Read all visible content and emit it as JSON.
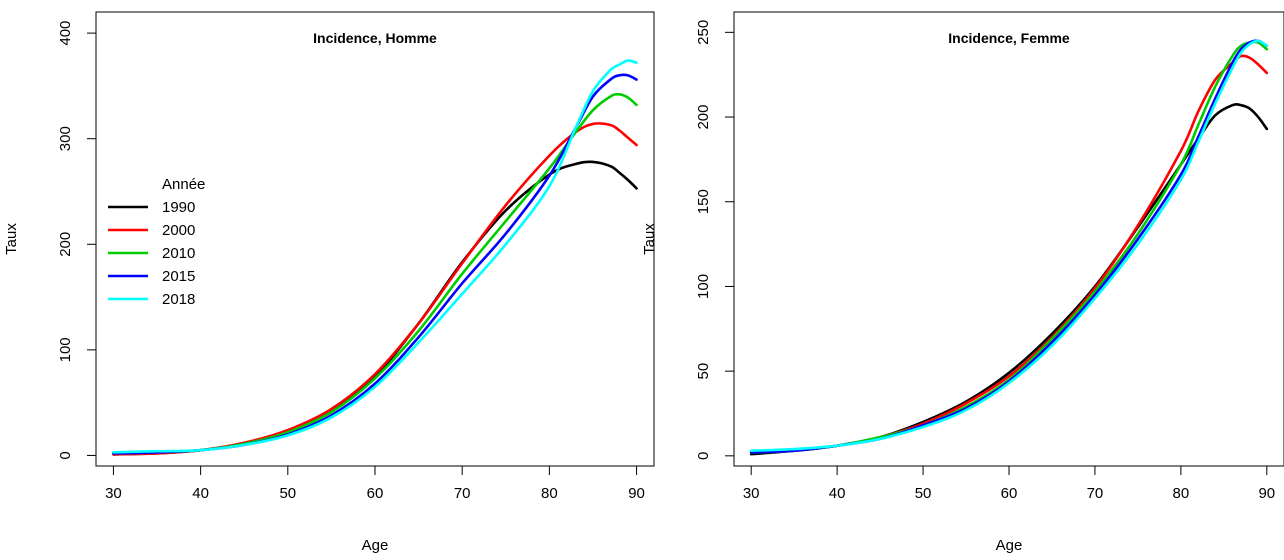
{
  "chart_data": [
    {
      "type": "line",
      "title": "Incidence, Homme",
      "xlabel": "Age",
      "ylabel": "Taux",
      "xlim": [
        28,
        92
      ],
      "ylim": [
        -10,
        420
      ],
      "xticks": [
        30,
        40,
        50,
        60,
        70,
        80,
        90
      ],
      "yticks": [
        0,
        100,
        200,
        300,
        400
      ],
      "grid": false,
      "legend": {
        "title": "Année",
        "position": "left"
      },
      "x": [
        30,
        35,
        40,
        45,
        50,
        55,
        60,
        65,
        70,
        75,
        80,
        83,
        85,
        87,
        88,
        89,
        90
      ],
      "series": [
        {
          "name": "1990",
          "color": "#000000",
          "values": [
            1,
            2,
            5,
            11,
            22,
            42,
            75,
            125,
            183,
            232,
            266,
            276,
            278,
            274,
            268,
            261,
            253
          ]
        },
        {
          "name": "2000",
          "color": "#ff0000",
          "values": [
            1,
            2,
            5,
            12,
            24,
            44,
            77,
            125,
            182,
            237,
            284,
            306,
            314,
            313,
            308,
            301,
            294
          ]
        },
        {
          "name": "2010",
          "color": "#00cd00",
          "values": [
            2,
            3,
            5,
            11,
            22,
            41,
            73,
            118,
            172,
            222,
            272,
            306,
            327,
            340,
            342,
            339,
            332
          ]
        },
        {
          "name": "2015",
          "color": "#0000ff",
          "values": [
            2,
            3,
            5,
            10,
            20,
            38,
            68,
            112,
            163,
            210,
            265,
            310,
            340,
            356,
            360,
            360,
            356
          ]
        },
        {
          "name": "2018",
          "color": "#00ffff",
          "values": [
            3,
            4,
            5,
            10,
            19,
            36,
            65,
            107,
            153,
            200,
            255,
            310,
            345,
            365,
            370,
            374,
            372
          ]
        }
      ]
    },
    {
      "type": "line",
      "title": "Incidence, Femme",
      "xlabel": "Age",
      "ylabel": "Taux",
      "xlim": [
        28,
        92
      ],
      "ylim": [
        -6,
        262
      ],
      "xticks": [
        30,
        40,
        50,
        60,
        70,
        80,
        90
      ],
      "yticks": [
        0,
        50,
        100,
        150,
        200,
        250
      ],
      "grid": false,
      "x": [
        30,
        35,
        40,
        45,
        50,
        55,
        60,
        65,
        70,
        75,
        80,
        82,
        84,
        86,
        87,
        88,
        89,
        90
      ],
      "series": [
        {
          "name": "1990",
          "color": "#000000",
          "values": [
            1,
            3,
            6,
            11,
            20,
            32,
            49,
            72,
            100,
            135,
            172,
            187,
            201,
            207,
            207,
            205,
            200,
            193
          ]
        },
        {
          "name": "2000",
          "color": "#ff0000",
          "values": [
            2,
            3,
            6,
            11,
            19,
            31,
            47,
            70,
            99,
            136,
            180,
            203,
            222,
            232,
            236,
            235,
            231,
            226
          ]
        },
        {
          "name": "2010",
          "color": "#00cd00",
          "values": [
            2,
            3,
            6,
            11,
            18,
            29,
            45,
            69,
            97,
            131,
            172,
            195,
            218,
            236,
            242,
            244,
            244,
            240
          ]
        },
        {
          "name": "2015",
          "color": "#0000ff",
          "values": [
            2,
            3,
            6,
            10,
            18,
            28,
            44,
            67,
            95,
            128,
            166,
            188,
            211,
            232,
            240,
            244,
            245,
            242
          ]
        },
        {
          "name": "2018",
          "color": "#00ffff",
          "values": [
            3,
            4,
            6,
            10,
            17,
            27,
            43,
            65,
            93,
            125,
            163,
            185,
            208,
            229,
            238,
            243,
            245,
            242
          ]
        }
      ]
    }
  ]
}
